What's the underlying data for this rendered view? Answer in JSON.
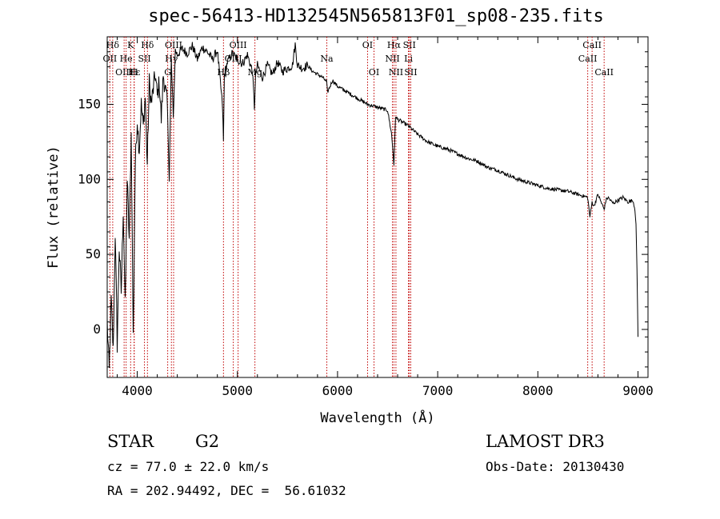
{
  "chart_data": {
    "type": "line",
    "title": "spec-56413-HD132545N565813F01_sp08-235.fits",
    "xlabel": "Wavelength (Å)",
    "ylabel": "Flux (relative)",
    "xlim": [
      3700,
      9100
    ],
    "ylim": [
      -32,
      195
    ],
    "xticks": [
      4000,
      5000,
      6000,
      7000,
      8000,
      9000
    ],
    "yticks": [
      0,
      50,
      100,
      150
    ],
    "series": [
      {
        "name": "spectrum",
        "x": [
          3700,
          3720,
          3740,
          3760,
          3780,
          3800,
          3820,
          3840,
          3860,
          3880,
          3900,
          3920,
          3940,
          3960,
          3980,
          4000,
          4020,
          4040,
          4060,
          4080,
          4100,
          4120,
          4140,
          4160,
          4180,
          4200,
          4220,
          4240,
          4260,
          4280,
          4300,
          4320,
          4340,
          4360,
          4380,
          4400,
          4450,
          4500,
          4550,
          4600,
          4650,
          4700,
          4750,
          4800,
          4850,
          4861,
          4870,
          4900,
          4950,
          5000,
          5050,
          5100,
          5150,
          5170,
          5183,
          5200,
          5250,
          5300,
          5350,
          5400,
          5450,
          5500,
          5550,
          5577,
          5600,
          5650,
          5700,
          5750,
          5800,
          5850,
          5890,
          5900,
          5950,
          6000,
          6100,
          6200,
          6300,
          6400,
          6500,
          6540,
          6563,
          6580,
          6600,
          6700,
          6800,
          6900,
          7000,
          7100,
          7200,
          7300,
          7400,
          7500,
          7600,
          7700,
          7800,
          7900,
          8000,
          8100,
          8200,
          8300,
          8400,
          8498,
          8520,
          8542,
          8560,
          8600,
          8662,
          8680,
          8700,
          8750,
          8800,
          8850,
          8900,
          8950,
          8970,
          8980,
          8990,
          9000
        ],
        "values": [
          5,
          -28,
          20,
          -15,
          65,
          -10,
          55,
          25,
          80,
          15,
          100,
          60,
          130,
          -5,
          110,
          140,
          120,
          150,
          135,
          155,
          110,
          165,
          150,
          160,
          170,
          155,
          165,
          140,
          170,
          160,
          150,
          100,
          180,
          140,
          186,
          183,
          187,
          184,
          189,
          180,
          188,
          185,
          180,
          186,
          150,
          125,
          170,
          178,
          184,
          180,
          177,
          183,
          172,
          148,
          170,
          176,
          168,
          176,
          170,
          178,
          172,
          174,
          176,
          190,
          176,
          174,
          176,
          172,
          170,
          168,
          165,
          158,
          166,
          162,
          158,
          154,
          150,
          148,
          146,
          130,
          110,
          142,
          140,
          136,
          130,
          125,
          122,
          120,
          117,
          114,
          112,
          108,
          106,
          103,
          100,
          98,
          96,
          94,
          93,
          92,
          90,
          88,
          75,
          85,
          82,
          90,
          80,
          86,
          88,
          84,
          86,
          88,
          85,
          86,
          80,
          70,
          40,
          -5
        ]
      }
    ],
    "line_markers": [
      {
        "label": "Hδ",
        "x": 3755,
        "row": 0
      },
      {
        "label": "K",
        "x": 3934,
        "row": 0
      },
      {
        "label": "Hδ",
        "x": 4102,
        "row": 0
      },
      {
        "label": "OIII",
        "x": 4363,
        "row": 0
      },
      {
        "label": "OIII",
        "x": 5007,
        "row": 0
      },
      {
        "label": "OI",
        "x": 6300,
        "row": 0
      },
      {
        "label": "Hα",
        "x": 6563,
        "row": 0
      },
      {
        "label": "SII",
        "x": 6717,
        "row": 0
      },
      {
        "label": "CaII",
        "x": 8542,
        "row": 0
      },
      {
        "label": "OII",
        "x": 3727,
        "row": 1
      },
      {
        "label": "He",
        "x": 3889,
        "row": 1
      },
      {
        "label": "SII",
        "x": 4072,
        "row": 1
      },
      {
        "label": "Hγ",
        "x": 4341,
        "row": 1
      },
      {
        "label": "OIII",
        "x": 4959,
        "row": 1
      },
      {
        "label": "Na",
        "x": 5893,
        "row": 1
      },
      {
        "label": "NII",
        "x": 6548,
        "row": 1
      },
      {
        "label": "Li",
        "x": 6708,
        "row": 1
      },
      {
        "label": "CaII",
        "x": 8498,
        "row": 1
      },
      {
        "label": "OIII",
        "x": 3869,
        "row": 2
      },
      {
        "label": "Hε",
        "x": 3970,
        "row": 2
      },
      {
        "label": "H",
        "x": 3968,
        "row": 2
      },
      {
        "label": "G",
        "x": 4304,
        "row": 2
      },
      {
        "label": "Hβ",
        "x": 4861,
        "row": 2
      },
      {
        "label": "Mg",
        "x": 5175,
        "row": 2
      },
      {
        "label": "OI",
        "x": 6364,
        "row": 2
      },
      {
        "label": "NII",
        "x": 6583,
        "row": 2
      },
      {
        "label": "SII",
        "x": 6731,
        "row": 2
      },
      {
        "label": "CaII",
        "x": 8662,
        "row": 2
      }
    ]
  },
  "info": {
    "object_class": "STAR",
    "subclass": "G2",
    "survey": "LAMOST DR3",
    "redshift": "cz = 77.0 ± 22.0 km/s",
    "obs_date": "Obs-Date: 20130430",
    "coords": "RA = 202.94492, DEC =  56.61032"
  }
}
